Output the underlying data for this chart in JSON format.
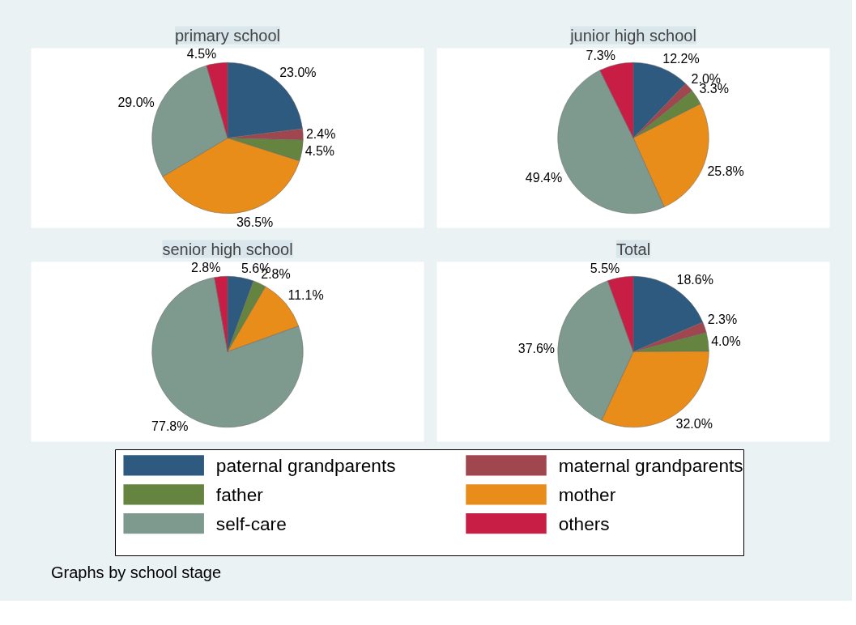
{
  "chart_data": [
    {
      "type": "pie",
      "title": "primary school",
      "categories": [
        "paternal grandparents",
        "maternal grandparents",
        "father",
        "mother",
        "self-care",
        "others"
      ],
      "values": [
        23.0,
        2.4,
        4.5,
        36.5,
        29.0,
        4.5
      ],
      "value_labels": [
        "23.0%",
        "2.4%",
        "4.5%",
        "36.5%",
        "29.0%",
        "4.5%"
      ],
      "colors": [
        "#2e5a80",
        "#a0464e",
        "#648440",
        "#e88c1a",
        "#7e9a8e",
        "#c81e45"
      ],
      "legend": "bottom"
    },
    {
      "type": "pie",
      "title": "junior high school",
      "values": [
        12.2,
        2.0,
        3.3,
        25.8,
        49.4,
        7.3
      ],
      "value_labels": [
        "12.2%",
        "2.0%",
        "3.3%",
        "25.8%",
        "49.4%",
        "7.3%"
      ],
      "colors": [
        "#2e5a80",
        "#a0464e",
        "#648440",
        "#e88c1a",
        "#7e9a8e",
        "#c81e45"
      ]
    },
    {
      "type": "pie",
      "title": "senior high school",
      "values": [
        5.6,
        0,
        2.8,
        11.1,
        77.8,
        2.8
      ],
      "value_labels": [
        "5.6%",
        null,
        "2.8%",
        "11.1%",
        "77.8%",
        "2.8%"
      ],
      "colors": [
        "#2e5a80",
        "#a0464e",
        "#648440",
        "#e88c1a",
        "#7e9a8e",
        "#c81e45"
      ]
    },
    {
      "type": "pie",
      "title": "Total",
      "values": [
        18.6,
        2.3,
        4.0,
        32.0,
        37.6,
        5.5
      ],
      "value_labels": [
        "18.6%",
        "2.3%",
        "4.0%",
        "32.0%",
        "37.6%",
        "5.5%"
      ],
      "colors": [
        "#2e5a80",
        "#a0464e",
        "#648440",
        "#e88c1a",
        "#7e9a8e",
        "#c81e45"
      ],
      "annotations": [
        "Graphs by school stage"
      ]
    }
  ]
}
